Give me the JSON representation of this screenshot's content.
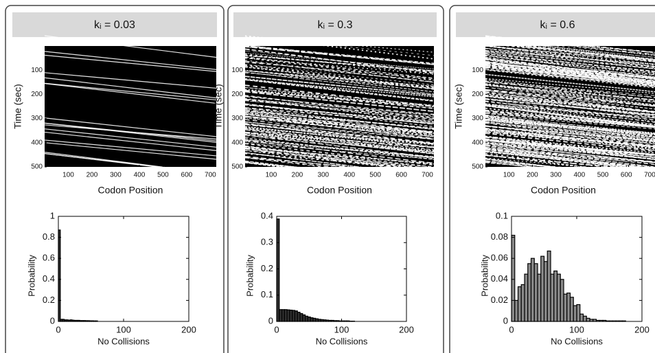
{
  "chart_data": [
    {
      "type": "kymograph",
      "title": "kᵢ = 0.03",
      "xlabel": "Codon Position",
      "ylabel": "Time (sec)",
      "xlim": [
        0,
        725
      ],
      "ylim": [
        0,
        500
      ],
      "xticks": [
        100,
        200,
        300,
        400,
        500,
        600,
        700
      ],
      "yticks": [
        100,
        200,
        300,
        400,
        500
      ]
    },
    {
      "type": "histogram",
      "xlabel": "No Collisions",
      "ylabel": "Probability",
      "xlim": [
        0,
        200
      ],
      "ylim": [
        0,
        1
      ],
      "xticks": [
        0,
        100,
        200
      ],
      "yticks": [
        0,
        0.2,
        0.4,
        0.6,
        0.8,
        1
      ],
      "color": "#303030",
      "bins": [
        0,
        3,
        6,
        9,
        12,
        15,
        18,
        21,
        24,
        27,
        30,
        33,
        36,
        39,
        42,
        45,
        48,
        51,
        54,
        57,
        60
      ],
      "values": [
        0.87,
        0.02,
        0.02,
        0.015,
        0.015,
        0.012,
        0.015,
        0.012,
        0.01,
        0.01,
        0.01,
        0.008,
        0.008,
        0.008,
        0.007,
        0.007,
        0.006,
        0.006,
        0.005,
        0.005
      ]
    },
    {
      "type": "kymograph",
      "title": "kᵢ = 0.3",
      "xlabel": "Codon Position",
      "ylabel": "Time (sec)",
      "xlim": [
        0,
        725
      ],
      "ylim": [
        0,
        500
      ],
      "xticks": [
        100,
        200,
        300,
        400,
        500,
        600,
        700
      ],
      "yticks": [
        100,
        200,
        300,
        400,
        500
      ]
    },
    {
      "type": "histogram",
      "xlabel": "No Collisions",
      "ylabel": "Probability",
      "xlim": [
        0,
        200
      ],
      "ylim": [
        0,
        0.4
      ],
      "xticks": [
        0,
        100,
        200
      ],
      "yticks": [
        0,
        0.1,
        0.2,
        0.3,
        0.4
      ],
      "color": "#303030",
      "bins": [
        0,
        4,
        8,
        12,
        16,
        20,
        24,
        28,
        32,
        36,
        40,
        44,
        48,
        52,
        56,
        60,
        64,
        68,
        72,
        76,
        80,
        84,
        88,
        92,
        96,
        100,
        104,
        108,
        112,
        116,
        120
      ],
      "values": [
        0.39,
        0.045,
        0.045,
        0.045,
        0.044,
        0.043,
        0.042,
        0.04,
        0.035,
        0.03,
        0.025,
        0.02,
        0.017,
        0.014,
        0.012,
        0.01,
        0.008,
        0.007,
        0.006,
        0.005,
        0.004,
        0.004,
        0.003,
        0.003,
        0.002,
        0.002,
        0.002,
        0.002,
        0.001,
        0.001
      ]
    },
    {
      "type": "kymograph",
      "title": "kᵢ = 0.6",
      "xlabel": "Codon Position",
      "ylabel": "Time (sec)",
      "xlim": [
        0,
        725
      ],
      "ylim": [
        0,
        500
      ],
      "xticks": [
        100,
        200,
        300,
        400,
        500,
        600,
        700
      ],
      "yticks": [
        100,
        200,
        300,
        400,
        500
      ]
    },
    {
      "type": "histogram",
      "xlabel": "No Collisions",
      "ylabel": "Probability",
      "xlim": [
        0,
        200
      ],
      "ylim": [
        0,
        0.1
      ],
      "xticks": [
        0,
        100,
        200
      ],
      "yticks": [
        0,
        0.02,
        0.04,
        0.06,
        0.08,
        0.1
      ],
      "color": "#8a8a8a",
      "bins": [
        0,
        5,
        10,
        15,
        20,
        25,
        30,
        35,
        40,
        45,
        50,
        55,
        60,
        65,
        70,
        75,
        80,
        85,
        90,
        95,
        100,
        105,
        110,
        115,
        120,
        125,
        130,
        135,
        140,
        145,
        150,
        155,
        160,
        165,
        170,
        175
      ],
      "values": [
        0.082,
        0.02,
        0.033,
        0.035,
        0.045,
        0.055,
        0.06,
        0.055,
        0.045,
        0.062,
        0.057,
        0.067,
        0.045,
        0.048,
        0.045,
        0.04,
        0.026,
        0.027,
        0.023,
        0.015,
        0.016,
        0.007,
        0.005,
        0.003,
        0.002,
        0.002,
        0.001,
        0.001,
        0.001,
        0.0005,
        0.0005,
        0.0005,
        0.0005,
        0.0005,
        0.0005
      ]
    }
  ]
}
